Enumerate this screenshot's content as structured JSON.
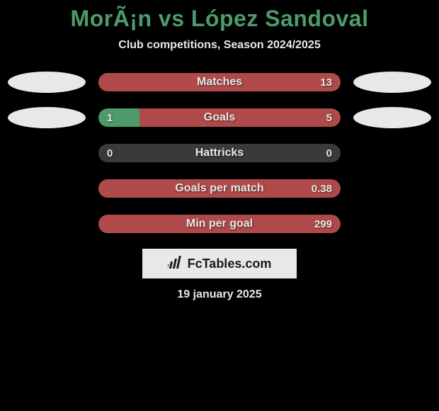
{
  "title": "MorÃ¡n vs López Sandoval",
  "subtitle": "Club competitions, Season 2024/2025",
  "colors": {
    "left": "#4d9b6a",
    "right": "#b04a4a",
    "neutral": "#3a3a3a",
    "oval": "#e8e8e8",
    "text": "#e8e8e8",
    "bg": "#000000"
  },
  "rows": [
    {
      "label": "Matches",
      "left_value": "",
      "right_value": "13",
      "left_pct": 0,
      "right_pct": 100,
      "show_ovals": true
    },
    {
      "label": "Goals",
      "left_value": "1",
      "right_value": "5",
      "left_pct": 17,
      "right_pct": 83,
      "show_ovals": true
    },
    {
      "label": "Hattricks",
      "left_value": "0",
      "right_value": "0",
      "left_pct": 0,
      "right_pct": 0,
      "show_ovals": false
    },
    {
      "label": "Goals per match",
      "left_value": "",
      "right_value": "0.38",
      "left_pct": 0,
      "right_pct": 100,
      "show_ovals": false
    },
    {
      "label": "Min per goal",
      "left_value": "",
      "right_value": "299",
      "left_pct": 0,
      "right_pct": 100,
      "show_ovals": false
    }
  ],
  "footer": {
    "logo_text": "FcTables.com",
    "date": "19 january 2025"
  }
}
